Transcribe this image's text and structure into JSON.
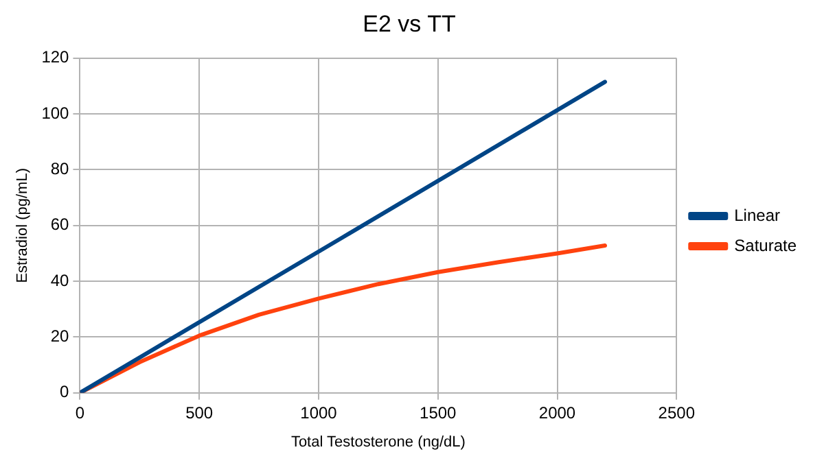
{
  "chart_data": {
    "type": "line",
    "title": "E2 vs TT",
    "xlabel": "Total Testosterone (ng/dL)",
    "ylabel": "Estradiol (pg/mL)",
    "xlim": [
      0,
      2500
    ],
    "xticks": [
      0,
      500,
      1000,
      1500,
      2000,
      2500
    ],
    "ylim": [
      0,
      120
    ],
    "yticks": [
      0,
      20,
      40,
      60,
      80,
      100,
      120
    ],
    "grid": true,
    "legend": "right",
    "marker": "none",
    "line_style": "solid",
    "series": [
      {
        "name": "Linear",
        "color": "#004586",
        "x": [
          0,
          1100,
          2200
        ],
        "values": [
          0,
          55.7,
          111.5
        ]
      },
      {
        "name": "Saturate",
        "color": "#ff420e",
        "x": [
          0,
          250,
          500,
          750,
          1000,
          1250,
          1500,
          1750,
          2000,
          2200
        ],
        "values": [
          0,
          11,
          20.5,
          28,
          33.8,
          39,
          43.3,
          46.8,
          50,
          52.8
        ]
      }
    ]
  }
}
